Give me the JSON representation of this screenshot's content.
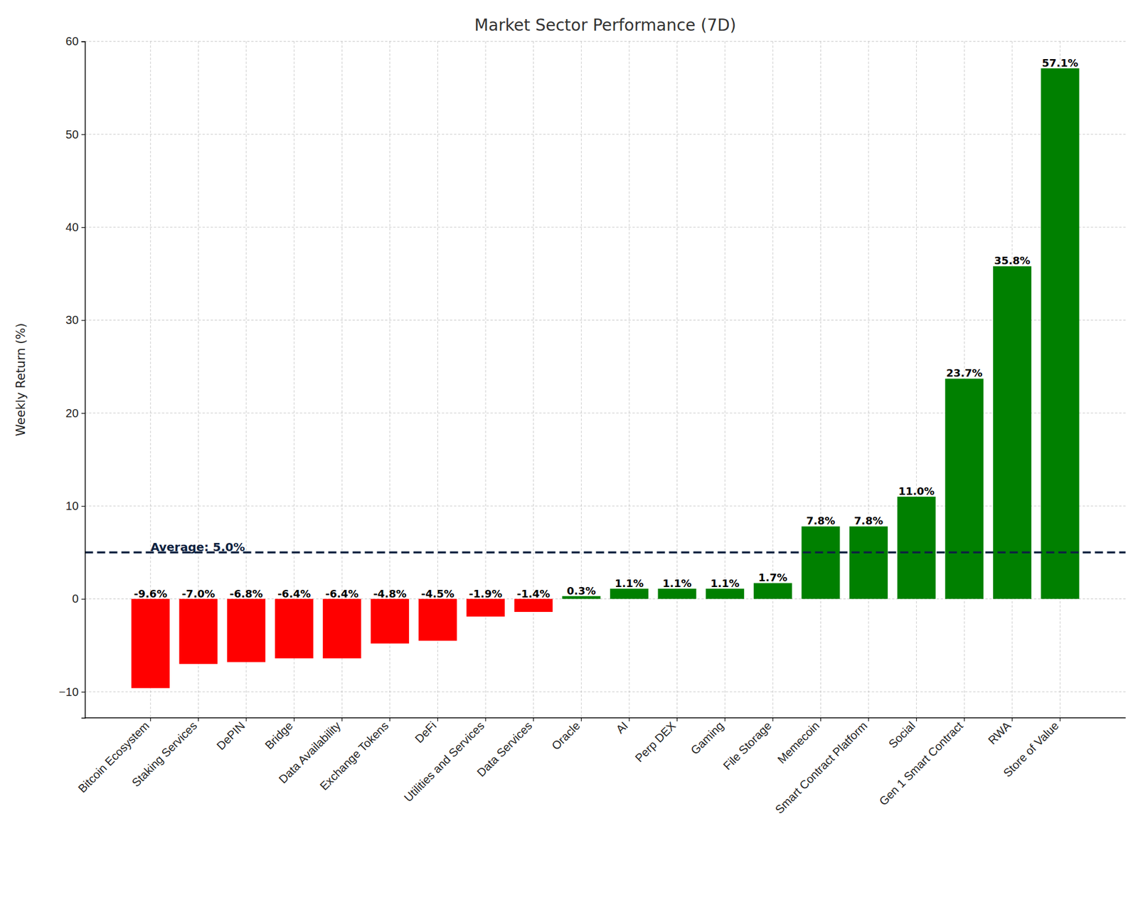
{
  "chart_data": {
    "type": "bar",
    "title": "Market Sector Performance (7D)",
    "y_label": "Weekly Return (%)",
    "categories": [
      "Bitcoin Ecosystem",
      "Staking Services",
      "DePIN",
      "Bridge",
      "Data Availability",
      "Exchange Tokens",
      "DeFi",
      "Utilities and Services",
      "Data Services",
      "Oracle",
      "AI",
      "Perp DEX",
      "Gaming",
      "File Storage",
      "Memecoin",
      "Smart Contract Platform",
      "Social",
      "Gen 1 Smart Contract",
      "RWA",
      "Store of Value"
    ],
    "values": [
      -9.6,
      -7.0,
      -6.8,
      -6.4,
      -6.4,
      -4.8,
      -4.5,
      -1.9,
      -1.4,
      0.3,
      1.1,
      1.1,
      1.1,
      1.7,
      7.8,
      7.8,
      11.0,
      23.7,
      35.8,
      57.1
    ],
    "value_labels": [
      "-9.6%",
      "-7.0%",
      "-6.8%",
      "-6.4%",
      "-6.4%",
      "-4.8%",
      "-4.5%",
      "-1.9%",
      "-1.4%",
      "0.3%",
      "1.1%",
      "1.1%",
      "1.1%",
      "1.7%",
      "7.8%",
      "7.8%",
      "11.0%",
      "23.7%",
      "35.8%",
      "57.1%"
    ],
    "colors": [
      "red",
      "red",
      "red",
      "red",
      "red",
      "red",
      "red",
      "red",
      "red",
      "green",
      "green",
      "green",
      "green",
      "green",
      "green",
      "green",
      "green",
      "green",
      "green",
      "green"
    ],
    "data_labels": true,
    "reference_line": {
      "value": 5.0,
      "label": "Average: 5.0%",
      "color": "#0d2240",
      "line_style": "dashed"
    },
    "ylim": [
      -12.8,
      60
    ],
    "yticks": [
      {
        "value": -10,
        "label": "−10"
      },
      0,
      10,
      20,
      30,
      40,
      50,
      60
    ],
    "grid": true
  }
}
